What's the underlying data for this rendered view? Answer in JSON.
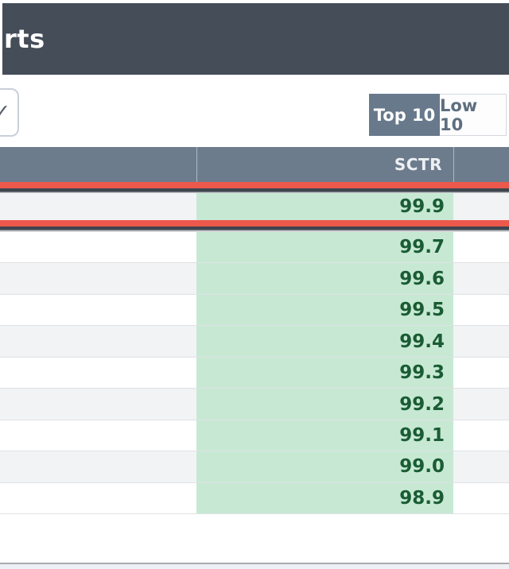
{
  "header": {
    "title": "rts"
  },
  "filter_checkbox": {
    "checked": true,
    "check_glyph": "✓",
    "name": "column-filter-checkbox"
  },
  "toggle": {
    "options": [
      {
        "label": "Top 10",
        "active": true
      },
      {
        "label": "Low 10",
        "active": false
      }
    ]
  },
  "table": {
    "sctr_column_header": "SCTR",
    "rows": [
      {
        "sctr": "99.9",
        "highlighted": true
      },
      {
        "sctr": "99.7",
        "highlighted": false
      },
      {
        "sctr": "99.6",
        "highlighted": false
      },
      {
        "sctr": "99.5",
        "highlighted": false
      },
      {
        "sctr": "99.4",
        "highlighted": false
      },
      {
        "sctr": "99.3",
        "highlighted": false
      },
      {
        "sctr": "99.2",
        "highlighted": false
      },
      {
        "sctr": "99.1",
        "highlighted": false
      },
      {
        "sctr": "99.0",
        "highlighted": false
      },
      {
        "sctr": "98.9",
        "highlighted": false
      }
    ]
  },
  "colors": {
    "top_bar": "#454d59",
    "table_header": "#6d7c8c",
    "highlight_rule_red": "#ed584c",
    "rule_shadow": "#3f444d",
    "row_alt_gray": "#f2f3f5",
    "green_cell": "#c7e9d4",
    "green_text": "#1a5c33",
    "toggle_active_bg": "#68798c",
    "toggle_inactive_text": "#5d6e7e",
    "bottom_band": "#edf1f6"
  }
}
